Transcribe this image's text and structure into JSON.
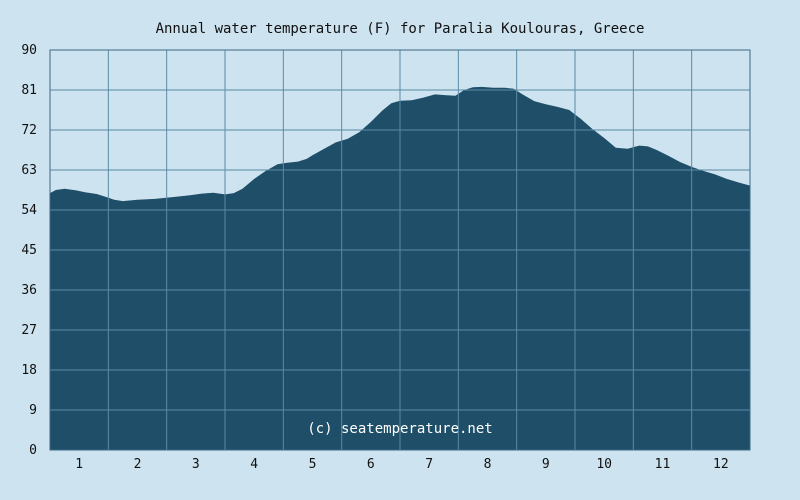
{
  "chart_data": {
    "type": "area",
    "title": "Annual water temperature (F) for Paralia Koulouras, Greece",
    "watermark": "(c) seatemperature.net",
    "xlabel": "",
    "ylabel": "",
    "xlim": [
      0.5,
      12.5
    ],
    "ylim": [
      0,
      90
    ],
    "yticks": [
      0,
      9,
      18,
      27,
      36,
      45,
      54,
      63,
      72,
      81,
      90
    ],
    "xticks": [
      1,
      2,
      3,
      4,
      5,
      6,
      7,
      8,
      9,
      10,
      11,
      12
    ],
    "grid": true,
    "fill_color": "#1f4e69",
    "grid_color": "#5b8aa6",
    "background_color": "#cde3ef",
    "series": [
      {
        "x": [
          0.5,
          0.6,
          0.75,
          0.95,
          1.1,
          1.3,
          1.45,
          1.6,
          1.75,
          2.0,
          2.3,
          2.6,
          2.9,
          3.1,
          3.3,
          3.5,
          3.65,
          3.8,
          4.0,
          4.2,
          4.4,
          4.55,
          4.75,
          4.9,
          5.0,
          5.2,
          5.4,
          5.6,
          5.8,
          6.0,
          6.2,
          6.35,
          6.5,
          6.7,
          6.9,
          7.1,
          7.3,
          7.45,
          7.6,
          7.75,
          7.9,
          8.1,
          8.3,
          8.45,
          8.6,
          8.8,
          9.0,
          9.2,
          9.4,
          9.6,
          9.8,
          10.0,
          10.2,
          10.4,
          10.6,
          10.75,
          10.9,
          11.1,
          11.3,
          11.5,
          11.7,
          11.9,
          12.1,
          12.3,
          12.5
        ],
        "y": [
          57.8,
          58.5,
          58.8,
          58.4,
          58.0,
          57.6,
          57.0,
          56.3,
          56.0,
          56.3,
          56.5,
          56.9,
          57.3,
          57.7,
          57.9,
          57.5,
          57.8,
          58.8,
          61.0,
          62.8,
          64.3,
          64.6,
          64.9,
          65.5,
          66.3,
          67.8,
          69.2,
          70.0,
          71.5,
          73.8,
          76.4,
          78.0,
          78.6,
          78.7,
          79.3,
          80.0,
          79.8,
          79.7,
          81.0,
          81.6,
          81.7,
          81.5,
          81.5,
          81.3,
          80.0,
          78.5,
          77.8,
          77.2,
          76.5,
          74.5,
          72.2,
          70.2,
          68.0,
          67.8,
          68.5,
          68.3,
          67.5,
          66.2,
          64.8,
          63.7,
          62.8,
          62.0,
          61.0,
          60.2,
          59.5
        ]
      }
    ]
  }
}
